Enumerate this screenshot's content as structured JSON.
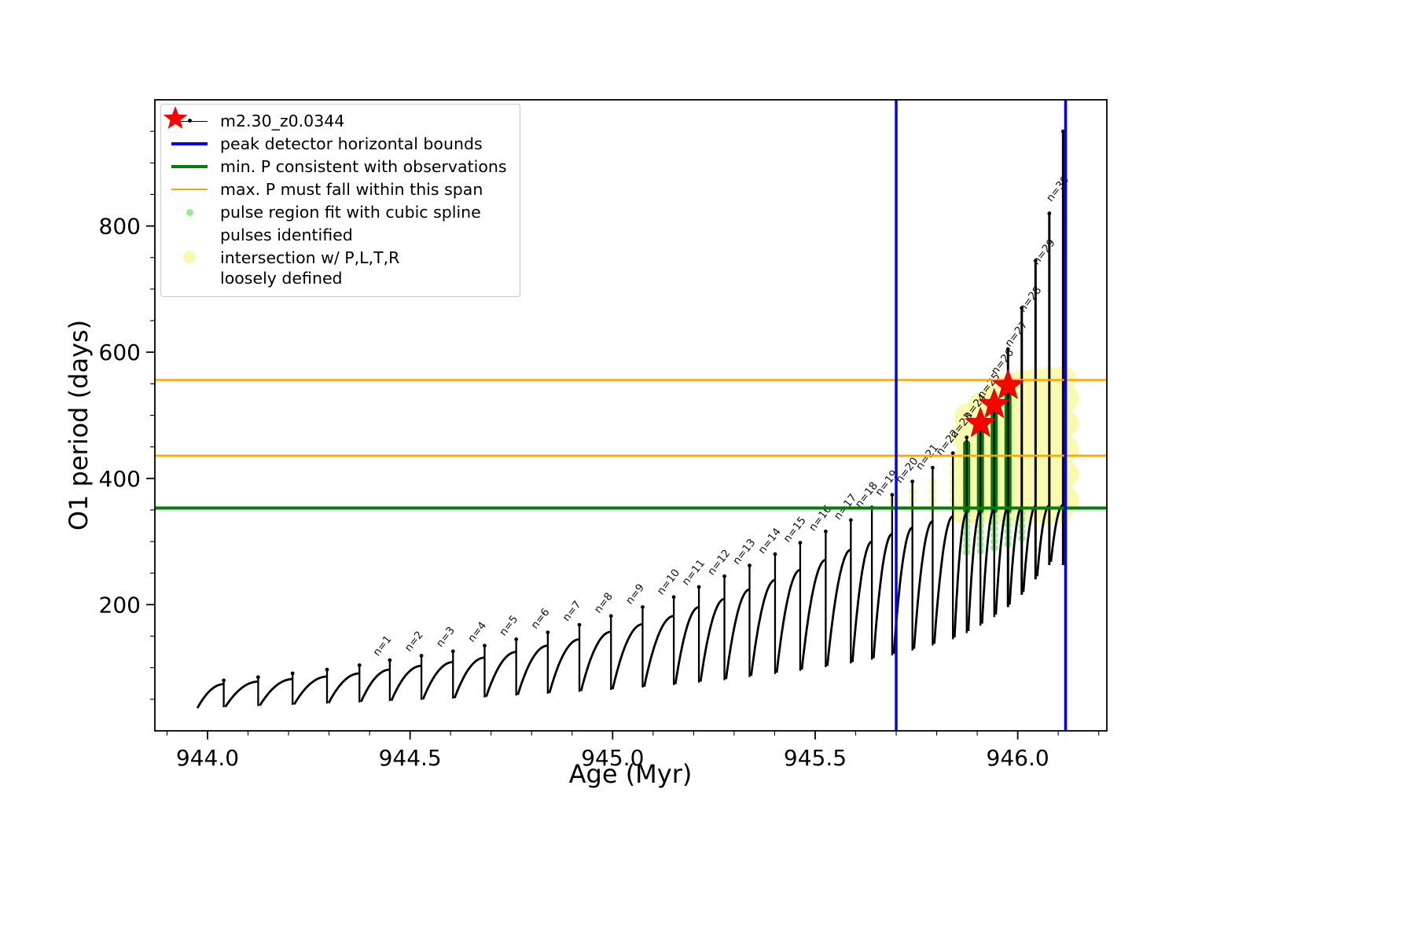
{
  "figure": {
    "bg": "#ffffff"
  },
  "axes": {
    "xlabel": "Age (Myr)",
    "ylabel": "O1 period (days)",
    "xlim": [
      943.87,
      946.22
    ],
    "ylim": [
      0,
      1000
    ],
    "xticks": [
      {
        "v": 944.0,
        "label": "944.0"
      },
      {
        "v": 944.5,
        "label": "944.5"
      },
      {
        "v": 945.0,
        "label": "945.0"
      },
      {
        "v": 945.5,
        "label": "945.5"
      },
      {
        "v": 946.0,
        "label": "946.0"
      }
    ],
    "yticks": [
      {
        "v": 200,
        "label": "200"
      },
      {
        "v": 400,
        "label": "400"
      },
      {
        "v": 600,
        "label": "600"
      },
      {
        "v": 800,
        "label": "800"
      }
    ],
    "x_minor_step": 0.1,
    "y_minor_step": 50
  },
  "legend": {
    "items": [
      {
        "label": "m2.30_z0.0344",
        "marker": "line-dot",
        "color": "#000000",
        "lw": 1.5
      },
      {
        "label": "peak detector horizontal bounds",
        "marker": "line",
        "color": "#0000ff",
        "lw": 4
      },
      {
        "label": "min. P consistent with observations",
        "marker": "line",
        "color": "#008000",
        "lw": 4
      },
      {
        "label": "max. P must fall within this span",
        "marker": "line",
        "color": "#ffa500",
        "lw": 2.5
      },
      {
        "label": "pulse region fit with cubic spline",
        "marker": "dot",
        "color": "#90ee90",
        "size": 9
      },
      {
        "label": "pulses identified",
        "marker": "star",
        "color": "#ff0000",
        "size": 32
      },
      {
        "label": "intersection w/ P,L,T,R\nloosely defined",
        "marker": "dot",
        "color": "#f8f8b0",
        "size": 16
      }
    ]
  },
  "chart_data": {
    "type": "line",
    "series_label": "m2.30_z0.0344",
    "xlabel": "Age (Myr)",
    "ylabel": "O1 period (days)",
    "x_start": 943.975,
    "colors": {
      "line": "#000000",
      "blue": "#0000ff",
      "green": "#008000",
      "orange": "#ffa500",
      "lightgreen": "#90ee90",
      "yellow": "#fafaae",
      "red": "#ff0000"
    },
    "pulses": [
      {
        "n": null,
        "x": 944.04,
        "b": 36,
        "a": 74,
        "s": 80,
        "L": null
      },
      {
        "n": null,
        "x": 944.125,
        "b": 38,
        "a": 78,
        "s": 85,
        "L": null
      },
      {
        "n": null,
        "x": 944.21,
        "b": 40,
        "a": 82,
        "s": 91,
        "L": null
      },
      {
        "n": null,
        "x": 944.295,
        "b": 42,
        "a": 86,
        "s": 97,
        "L": null
      },
      {
        "n": null,
        "x": 944.375,
        "b": 44,
        "a": 91,
        "s": 104,
        "L": null
      },
      {
        "n": "n=1",
        "x": 944.45,
        "b": 46,
        "a": 97,
        "s": 112,
        "L": 110
      },
      {
        "n": "n=2",
        "x": 944.528,
        "b": 48,
        "a": 103,
        "s": 119,
        "L": 117
      },
      {
        "n": "n=3",
        "x": 944.606,
        "b": 50,
        "a": 109,
        "s": 126,
        "L": 124
      },
      {
        "n": "n=4",
        "x": 944.684,
        "b": 52,
        "a": 116,
        "s": 135,
        "L": 132
      },
      {
        "n": "n=5",
        "x": 944.762,
        "b": 54,
        "a": 125,
        "s": 145,
        "L": 142
      },
      {
        "n": "n=6",
        "x": 944.84,
        "b": 57,
        "a": 135,
        "s": 156,
        "L": 153
      },
      {
        "n": "n=7",
        "x": 944.918,
        "b": 60,
        "a": 145,
        "s": 168,
        "L": 165
      },
      {
        "n": "n=8",
        "x": 944.996,
        "b": 63,
        "a": 157,
        "s": 182,
        "L": 178
      },
      {
        "n": "n=9",
        "x": 945.074,
        "b": 66,
        "a": 169,
        "s": 196,
        "L": 192
      },
      {
        "n": "n=10",
        "x": 945.151,
        "b": 70,
        "a": 182,
        "s": 212,
        "L": 207
      },
      {
        "n": "n=11",
        "x": 945.213,
        "b": 74,
        "a": 196,
        "s": 228,
        "L": 222
      },
      {
        "n": "n=12",
        "x": 945.276,
        "b": 78,
        "a": 209,
        "s": 245,
        "L": 238
      },
      {
        "n": "n=13",
        "x": 945.338,
        "b": 82,
        "a": 224,
        "s": 262,
        "L": 255
      },
      {
        "n": "n=14",
        "x": 945.401,
        "b": 87,
        "a": 239,
        "s": 280,
        "L": 272
      },
      {
        "n": "n=15",
        "x": 945.463,
        "b": 92,
        "a": 255,
        "s": 298,
        "L": 290
      },
      {
        "n": "n=16",
        "x": 945.526,
        "b": 97,
        "a": 271,
        "s": 316,
        "L": 308
      },
      {
        "n": "n=17",
        "x": 945.588,
        "b": 103,
        "a": 287,
        "s": 334,
        "L": 326
      },
      {
        "n": "n=18",
        "x": 945.64,
        "b": 109,
        "a": 300,
        "s": 354,
        "L": 345
      },
      {
        "n": "n=19",
        "x": 945.69,
        "b": 115,
        "a": 312,
        "s": 374,
        "L": 364
      },
      {
        "n": "n=20",
        "x": 945.74,
        "b": 122,
        "a": 322,
        "s": 395,
        "L": 384
      },
      {
        "n": "n=21",
        "x": 945.79,
        "b": 130,
        "a": 332,
        "s": 417,
        "L": 405
      },
      {
        "n": "n=22",
        "x": 945.84,
        "b": 138,
        "a": 340,
        "s": 440,
        "L": 428
      },
      {
        "n": "n=23",
        "x": 945.874,
        "b": 148,
        "a": 345,
        "s": 465,
        "L": 455
      },
      {
        "n": "n=24",
        "x": 945.908,
        "b": 158,
        "a": 349,
        "s": 495,
        "L": 485
      },
      {
        "n": "n=25",
        "x": 945.942,
        "b": 170,
        "a": 352,
        "s": 528,
        "L": 518
      },
      {
        "n": "n=26",
        "x": 945.976,
        "b": 184,
        "a": 354,
        "s": 605,
        "L": 556
      },
      {
        "n": "n=27",
        "x": 946.01,
        "b": 200,
        "a": 355,
        "s": 670,
        "L": 600
      },
      {
        "n": "n=28",
        "x": 946.044,
        "b": 220,
        "a": 356,
        "s": 745,
        "L": 655
      },
      {
        "n": "n=29",
        "x": 946.078,
        "b": 245,
        "a": 357,
        "s": 820,
        "L": 730
      },
      {
        "n": "n=30",
        "x": 946.112,
        "b": 268,
        "a": 358,
        "s": 950,
        "L": 830
      }
    ],
    "hlines": [
      {
        "name": "min-P-consistent",
        "y": 353,
        "color": "#008000",
        "lw": 4
      },
      {
        "name": "max-P-span-lower",
        "y": 436,
        "color": "#ffa500",
        "lw": 2.5
      },
      {
        "name": "max-P-span-upper",
        "y": 556,
        "color": "#ffa500",
        "lw": 2.5
      }
    ],
    "vlines": [
      {
        "name": "peak-detector-left",
        "x": 945.7,
        "color": "#0000ff",
        "lw": 3.5
      },
      {
        "name": "peak-detector-right",
        "x": 946.118,
        "color": "#0000ff",
        "lw": 3.5
      }
    ],
    "stars": [
      {
        "x": 945.908,
        "y": 487
      },
      {
        "x": 945.942,
        "y": 517
      },
      {
        "x": 945.976,
        "y": 547
      }
    ],
    "green_bars": [
      {
        "x": 945.874,
        "y0": 350,
        "y1": 455
      },
      {
        "x": 945.908,
        "y0": 350,
        "y1": 485
      },
      {
        "x": 945.942,
        "y0": 350,
        "y1": 515
      },
      {
        "x": 945.976,
        "y0": 350,
        "y1": 545
      }
    ],
    "lightgreen_columns": [
      {
        "x": 945.874,
        "y0": 283,
        "y1": 348
      },
      {
        "x": 945.908,
        "y0": 285,
        "y1": 348
      },
      {
        "x": 945.942,
        "y0": 290,
        "y1": 348
      },
      {
        "x": 945.976,
        "y0": 296,
        "y1": 348
      },
      {
        "x": 946.01,
        "y0": 305,
        "y1": 345
      }
    ],
    "yellow_dense": [
      {
        "x": 945.874,
        "y0": 347,
        "y1": 498
      },
      {
        "x": 945.908,
        "y0": 347,
        "y1": 516
      },
      {
        "x": 945.942,
        "y0": 347,
        "y1": 532
      },
      {
        "x": 945.976,
        "y0": 347,
        "y1": 546
      },
      {
        "x": 946.01,
        "y0": 347,
        "y1": 552
      },
      {
        "x": 946.044,
        "y0": 347,
        "y1": 555
      },
      {
        "x": 946.078,
        "y0": 347,
        "y1": 557
      },
      {
        "x": 946.112,
        "y0": 347,
        "y1": 558
      }
    ],
    "yellow_sparse": [
      {
        "x": 945.69,
        "y0": 352,
        "y1": 370
      },
      {
        "x": 945.74,
        "y0": 352,
        "y1": 388
      },
      {
        "x": 945.79,
        "y0": 352,
        "y1": 407
      },
      {
        "x": 945.84,
        "y0": 352,
        "y1": 428
      }
    ]
  }
}
